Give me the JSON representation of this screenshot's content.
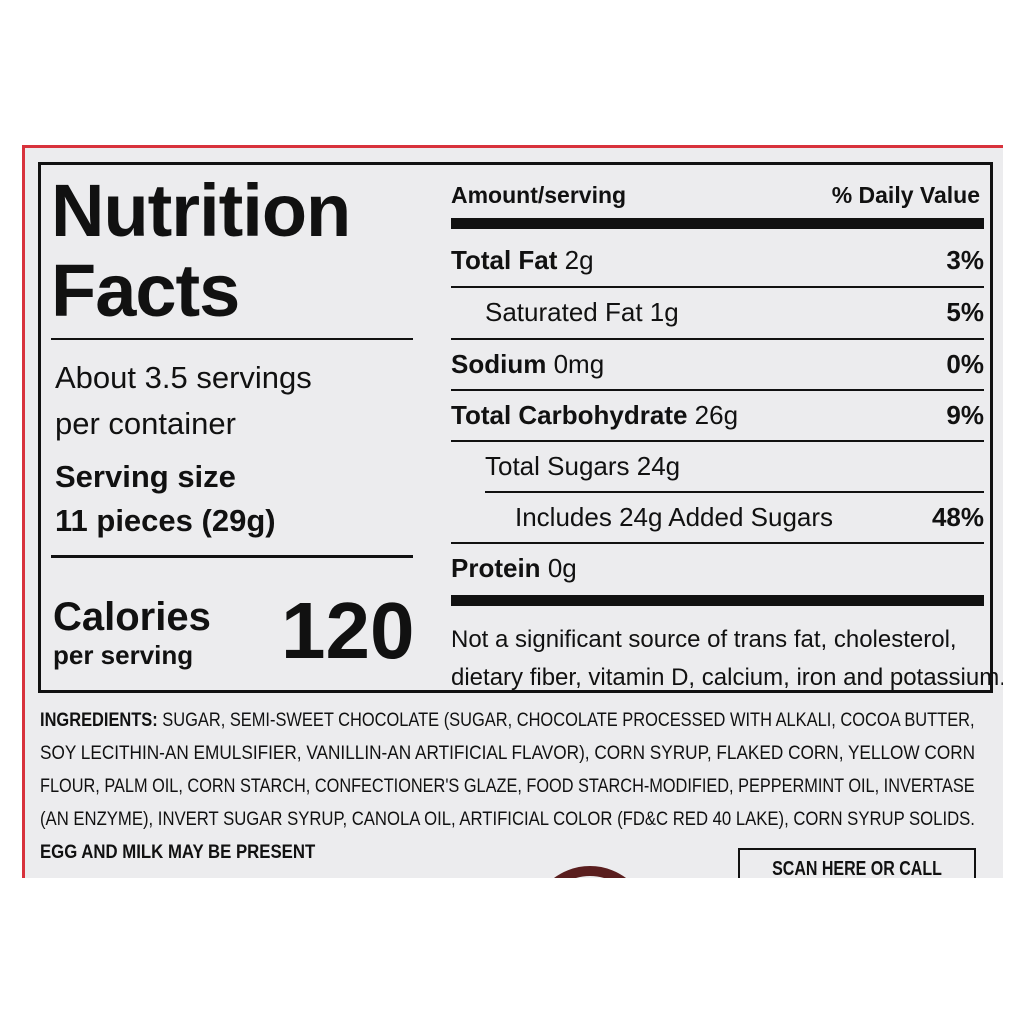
{
  "title_line1": "Nutrition",
  "title_line2": "Facts",
  "servings": {
    "line1": "About 3.5 servings",
    "line2": "per container"
  },
  "serving_size": {
    "label": "Serving size",
    "value": "11 pieces (29g)"
  },
  "calories": {
    "label": "Calories",
    "sub": "per serving",
    "value": "120"
  },
  "header": {
    "amount": "Amount/serving",
    "dv": "% Daily Value"
  },
  "nutrients": [
    {
      "name": "Total Fat",
      "amount": "2g",
      "dv": "3%"
    },
    {
      "name": "Saturated Fat",
      "amount": "1g",
      "dv": "5%"
    },
    {
      "name": "Sodium",
      "amount": "0mg",
      "dv": "0%"
    },
    {
      "name": "Total Carbohydrate",
      "amount": "26g",
      "dv": "9%"
    },
    {
      "name": "Total Sugars",
      "amount": "24g",
      "dv": ""
    },
    {
      "name": "Includes 24g Added Sugars",
      "amount": "",
      "dv": "48%"
    },
    {
      "name": "Protein",
      "amount": "0g",
      "dv": ""
    }
  ],
  "footnote": {
    "line1": "Not a significant source of trans fat, cholesterol,",
    "line2": "dietary fiber, vitamin D, calcium, iron and potassium."
  },
  "ingredients": {
    "label": "INGREDIENTS:",
    "lines": [
      " SUGAR, SEMI-SWEET CHOCOLATE (SUGAR, CHOCOLATE PROCESSED WITH ALKALI, COCOA BUTTER,",
      "SOY LECITHIN-AN EMULSIFIER, VANILLIN-AN ARTIFICIAL FLAVOR), CORN SYRUP, FLAKED CORN, YELLOW CORN",
      "FLOUR, PALM OIL, CORN STARCH, CONFECTIONER'S GLAZE, FOOD STARCH-MODIFIED, PEPPERMINT OIL, INVERTASE",
      "(AN ENZYME), INVERT SUGAR SYRUP, CANOLA OIL, ARTIFICIAL COLOR (FD&C RED 40 LAKE), CORN SYRUP SOLIDS."
    ],
    "allergen": "EGG AND MILK MAY BE PRESENT"
  },
  "scan_box": "SCAN HERE OR CALL FOR",
  "colors": {
    "border_red": "#d8323c",
    "label_bg": "#ececee",
    "seal": "#5a1e1e"
  }
}
